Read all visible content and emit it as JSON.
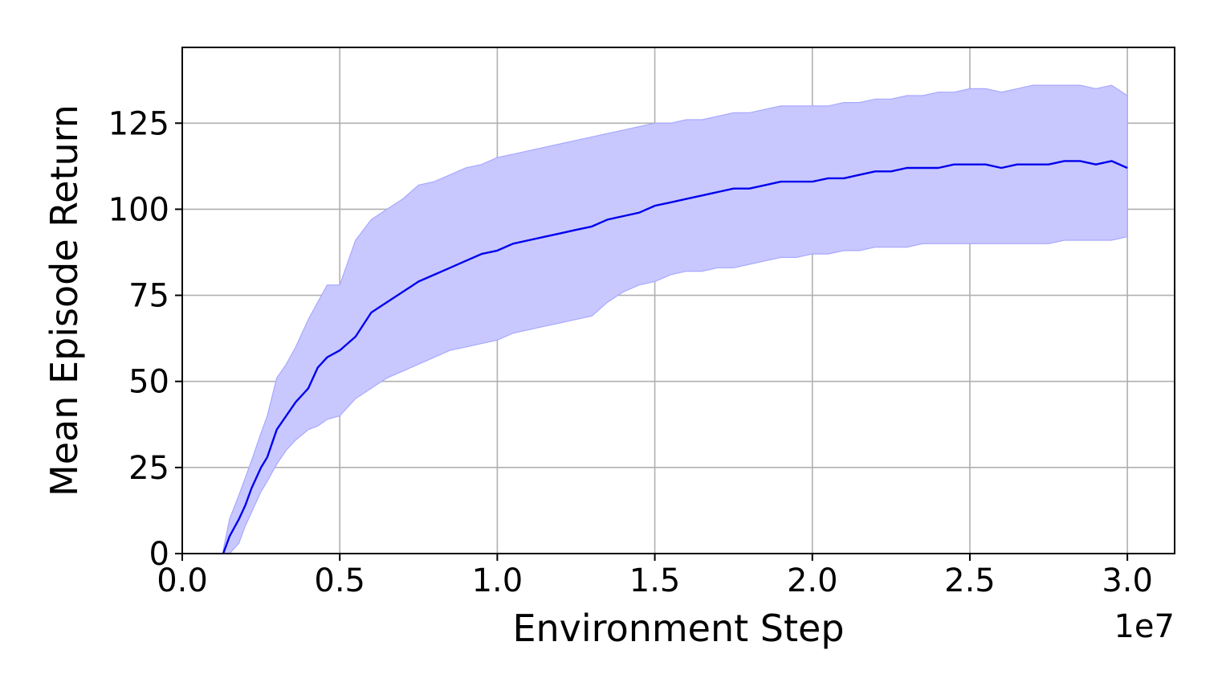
{
  "chart_data": {
    "type": "line",
    "xlabel": "Environment Step",
    "ylabel": "Mean Episode Return",
    "x_offset_label": "1e7",
    "xlim": [
      0.0,
      3.15
    ],
    "ylim": [
      0,
      147
    ],
    "xticks": [
      0.0,
      0.5,
      1.0,
      1.5,
      2.0,
      2.5,
      3.0
    ],
    "xtick_labels": [
      "0.0",
      "0.5",
      "1.0",
      "1.5",
      "2.0",
      "2.5",
      "3.0"
    ],
    "yticks": [
      0,
      25,
      50,
      75,
      100,
      125
    ],
    "ytick_labels": [
      "0",
      "25",
      "50",
      "75",
      "100",
      "125"
    ],
    "grid": true,
    "legend": "none",
    "colors": {
      "line": "#0000ee",
      "band": "#c8c8ff",
      "band_edge": "#a8a8ff"
    },
    "series": [
      {
        "x": [
          0.13,
          0.15,
          0.18,
          0.2,
          0.22,
          0.25,
          0.27,
          0.3,
          0.33,
          0.36,
          0.4,
          0.43,
          0.46,
          0.5,
          0.55,
          0.6,
          0.65,
          0.7,
          0.75,
          0.8,
          0.85,
          0.9,
          0.95,
          1.0,
          1.05,
          1.1,
          1.15,
          1.2,
          1.25,
          1.3,
          1.35,
          1.4,
          1.45,
          1.5,
          1.55,
          1.6,
          1.65,
          1.7,
          1.75,
          1.8,
          1.85,
          1.9,
          1.95,
          2.0,
          2.05,
          2.1,
          2.15,
          2.2,
          2.25,
          2.3,
          2.35,
          2.4,
          2.45,
          2.5,
          2.55,
          2.6,
          2.65,
          2.7,
          2.75,
          2.8,
          2.85,
          2.9,
          2.95,
          3.0
        ],
        "mean": [
          0,
          5,
          10,
          14,
          19,
          25,
          28,
          36,
          40,
          44,
          48,
          54,
          57,
          59,
          63,
          70,
          73,
          76,
          79,
          81,
          83,
          85,
          87,
          88,
          90,
          91,
          92,
          93,
          94,
          95,
          97,
          98,
          99,
          101,
          102,
          103,
          104,
          105,
          106,
          106,
          107,
          108,
          108,
          108,
          109,
          109,
          110,
          111,
          111,
          112,
          112,
          112,
          113,
          113,
          113,
          112,
          113,
          113,
          113,
          114,
          114,
          113,
          114,
          112
        ],
        "upper": [
          1,
          10,
          17,
          22,
          27,
          35,
          40,
          51,
          55,
          60,
          68,
          73,
          78,
          78,
          91,
          97,
          100,
          103,
          107,
          108,
          110,
          112,
          113,
          115,
          116,
          117,
          118,
          119,
          120,
          121,
          122,
          123,
          124,
          125,
          125,
          126,
          126,
          127,
          128,
          128,
          129,
          130,
          130,
          130,
          130,
          131,
          131,
          132,
          132,
          133,
          133,
          134,
          134,
          135,
          135,
          134,
          135,
          136,
          136,
          136,
          136,
          135,
          136,
          133
        ],
        "lower": [
          0,
          0,
          3,
          8,
          12,
          18,
          21,
          26,
          30,
          33,
          36,
          37,
          39,
          40,
          45,
          48,
          51,
          53,
          55,
          57,
          59,
          60,
          61,
          62,
          64,
          65,
          66,
          67,
          68,
          69,
          73,
          76,
          78,
          79,
          81,
          82,
          82,
          83,
          83,
          84,
          85,
          86,
          86,
          87,
          87,
          88,
          88,
          89,
          89,
          89,
          90,
          90,
          90,
          90,
          90,
          90,
          90,
          90,
          90,
          91,
          91,
          91,
          91,
          92
        ]
      }
    ]
  }
}
